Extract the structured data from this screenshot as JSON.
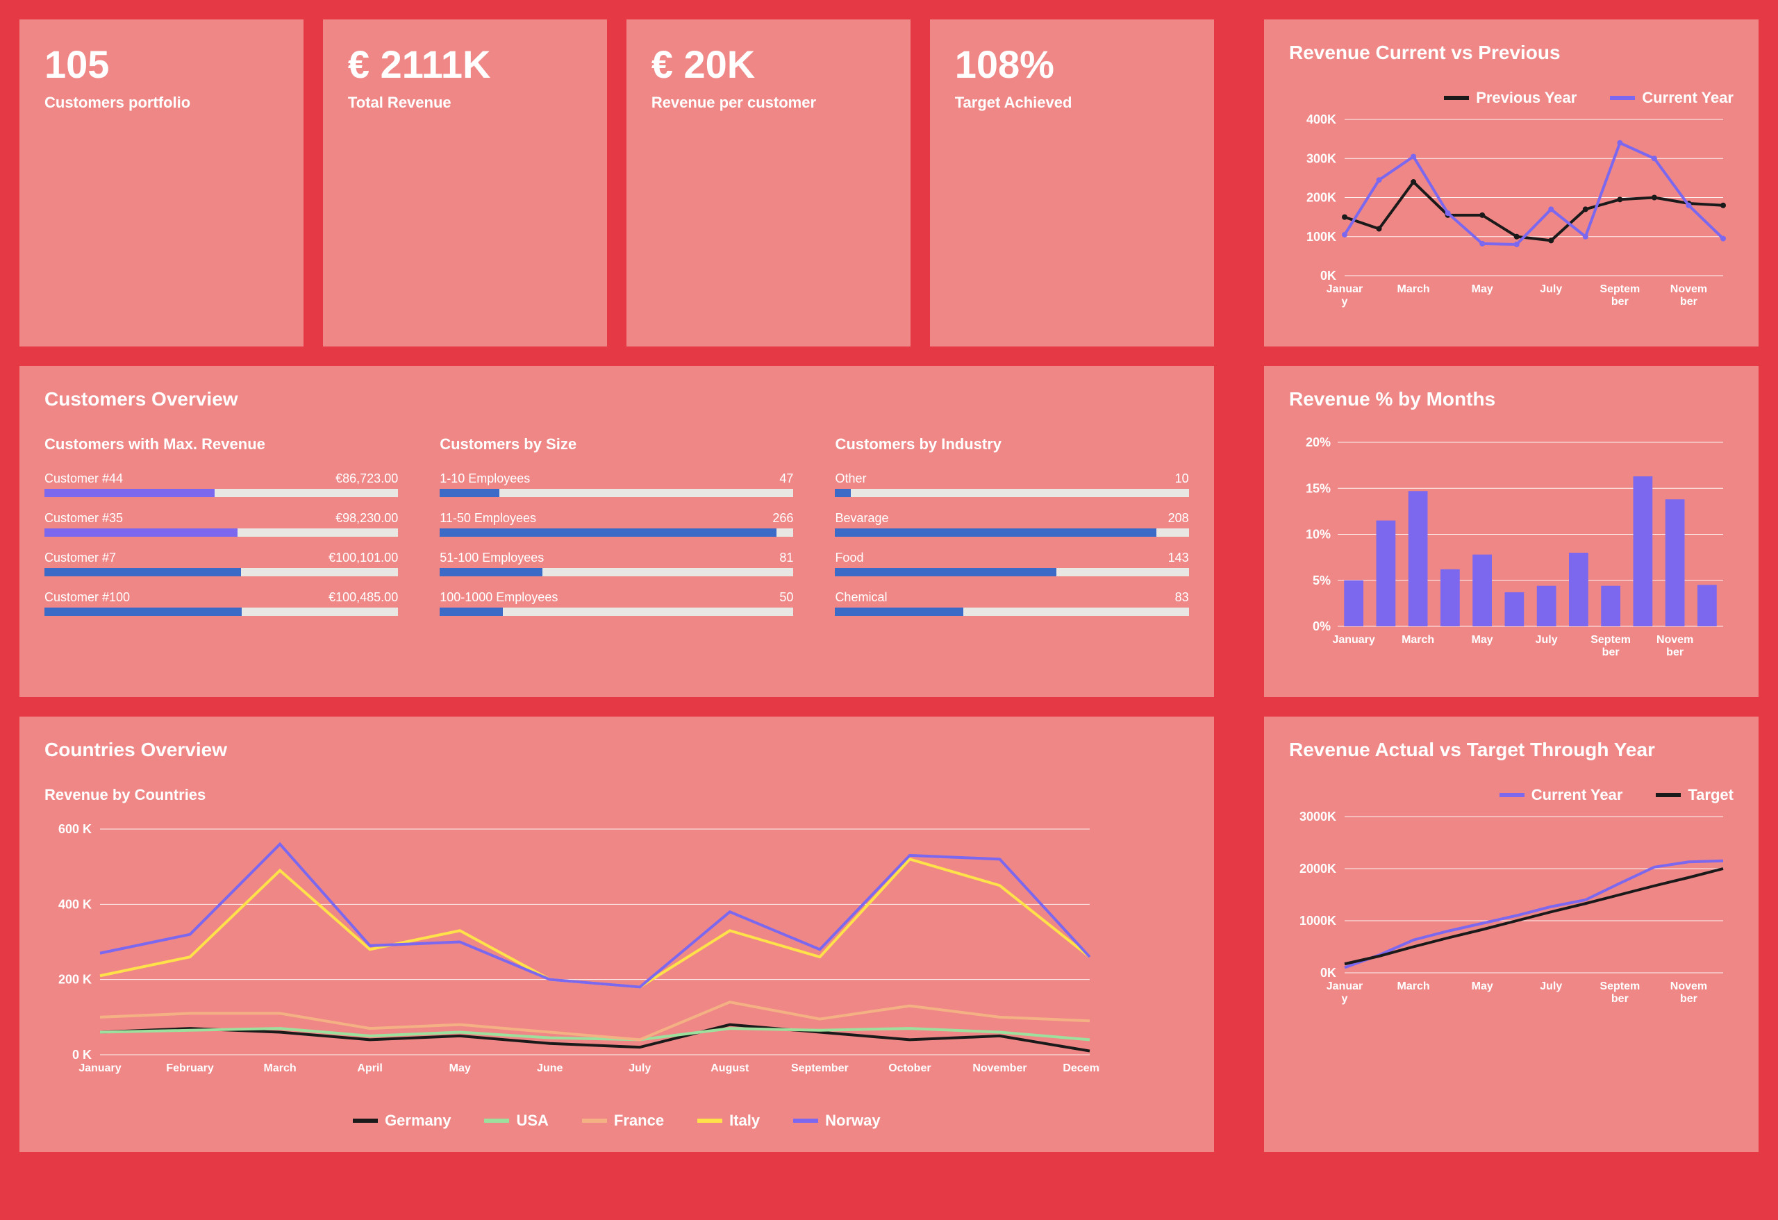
{
  "colors": {
    "bg": "#e63946",
    "panel": "#ef8787",
    "text": "#ffffff",
    "bar_track": "#e9e7e4",
    "bar_blue": "#3b6bc6",
    "bar_purple": "#7b68ee",
    "line_black": "#1a1a1a",
    "line_purple": "#7b68ee",
    "line_green": "#9de09d",
    "line_orange": "#f4b183",
    "line_yellow": "#ffe24a",
    "grid": "#ffffff"
  },
  "kpis": [
    {
      "value": "105",
      "label": "Customers portfolio"
    },
    {
      "value": "€ 2111K",
      "label": "Total Revenue"
    },
    {
      "value": "€ 20K",
      "label": "Revenue per customer"
    },
    {
      "value": "108%",
      "label": "Target Achieved"
    }
  ],
  "customers_overview": {
    "title": "Customers Overview",
    "max_revenue": {
      "title": "Customers with Max. Revenue",
      "max": 100485,
      "items": [
        {
          "label": "Customer #44",
          "value_text": "€86,723.00",
          "value": 86723,
          "color": "#7b68ee"
        },
        {
          "label": "Customer #35",
          "value_text": "€98,230.00",
          "value": 98230,
          "color": "#7b68ee"
        },
        {
          "label": "Customer #7",
          "value_text": "€100,101.00",
          "value": 100101,
          "color": "#3b6bc6"
        },
        {
          "label": "Customer #100",
          "value_text": "€100,485.00",
          "value": 100485,
          "color": "#3b6bc6"
        }
      ]
    },
    "by_size": {
      "title": "Customers by Size",
      "max": 266,
      "items": [
        {
          "label": "1-10 Employees",
          "value_text": "47",
          "value": 47,
          "color": "#3b6bc6"
        },
        {
          "label": "11-50 Employees",
          "value_text": "266",
          "value": 266,
          "color": "#3b6bc6"
        },
        {
          "label": "51-100 Employees",
          "value_text": "81",
          "value": 81,
          "color": "#3b6bc6"
        },
        {
          "label": "100-1000 Employees",
          "value_text": "50",
          "value": 50,
          "color": "#3b6bc6"
        }
      ]
    },
    "by_industry": {
      "title": "Customers by Industry",
      "max": 208,
      "items": [
        {
          "label": "Other",
          "value_text": "10",
          "value": 10,
          "color": "#3b6bc6"
        },
        {
          "label": "Bevarage",
          "value_text": "208",
          "value": 208,
          "color": "#3b6bc6"
        },
        {
          "label": "Food",
          "value_text": "143",
          "value": 143,
          "color": "#3b6bc6"
        },
        {
          "label": "Chemical",
          "value_text": "83",
          "value": 83,
          "color": "#3b6bc6"
        }
      ]
    }
  },
  "countries_overview": {
    "title": "Countries Overview",
    "subtitle": "Revenue by Countries",
    "months": [
      "January",
      "February",
      "March",
      "April",
      "May",
      "June",
      "July",
      "August",
      "September",
      "October",
      "November",
      "December"
    ],
    "y_ticks": [
      0,
      200,
      400,
      600
    ],
    "y_tick_labels": [
      "0 K",
      "200 K",
      "400 K",
      "600 K"
    ],
    "ylim": [
      0,
      600
    ],
    "series": [
      {
        "name": "Germany",
        "color": "#1a1a1a",
        "values": [
          60,
          70,
          60,
          40,
          50,
          30,
          20,
          80,
          60,
          40,
          50,
          10
        ]
      },
      {
        "name": "USA",
        "color": "#9de09d",
        "values": [
          60,
          65,
          70,
          50,
          60,
          45,
          40,
          70,
          65,
          70,
          60,
          40
        ]
      },
      {
        "name": "France",
        "color": "#f4b183",
        "values": [
          100,
          110,
          110,
          70,
          80,
          60,
          40,
          140,
          95,
          130,
          100,
          90
        ]
      },
      {
        "name": "Italy",
        "color": "#ffe24a",
        "values": [
          210,
          260,
          490,
          280,
          330,
          200,
          180,
          330,
          260,
          520,
          450,
          260
        ]
      },
      {
        "name": "Norway",
        "color": "#7b68ee",
        "values": [
          270,
          320,
          560,
          290,
          300,
          200,
          180,
          380,
          280,
          530,
          520,
          260
        ]
      }
    ]
  },
  "revenue_cvp": {
    "title": "Revenue Current vs Previous",
    "months_short": [
      "Januar y",
      "March",
      "May",
      "July",
      "Septem ber",
      "Novem ber"
    ],
    "y_ticks": [
      0,
      100,
      200,
      300,
      400
    ],
    "y_tick_labels": [
      "0K",
      "100K",
      "200K",
      "300K",
      "400K"
    ],
    "ylim": [
      0,
      400
    ],
    "series": [
      {
        "name": "Previous Year",
        "color": "#1a1a1a",
        "values": [
          150,
          120,
          240,
          155,
          155,
          100,
          90,
          170,
          195,
          200,
          185,
          180
        ]
      },
      {
        "name": "Current Year",
        "color": "#7b68ee",
        "values": [
          105,
          245,
          305,
          160,
          82,
          80,
          170,
          100,
          340,
          300,
          180,
          95
        ]
      }
    ]
  },
  "revenue_pct": {
    "title": "Revenue % by Months",
    "months_short": [
      "January",
      "March",
      "May",
      "July",
      "Septem ber",
      "Novem ber"
    ],
    "y_ticks": [
      0,
      5,
      10,
      15,
      20
    ],
    "y_tick_labels": [
      "0%",
      "5%",
      "10%",
      "15%",
      "20%"
    ],
    "ylim": [
      0,
      20
    ],
    "color": "#7b68ee",
    "values": [
      5,
      11.5,
      14.7,
      6.2,
      7.8,
      3.7,
      4.4,
      8,
      4.4,
      16.3,
      13.8,
      4.5
    ]
  },
  "revenue_avt": {
    "title": "Revenue Actual vs Target Through Year",
    "months_short": [
      "Januar y",
      "March",
      "May",
      "July",
      "Septem ber",
      "Novem ber"
    ],
    "y_ticks": [
      0,
      1000,
      2000,
      3000
    ],
    "y_tick_labels": [
      "0K",
      "1000K",
      "2000K",
      "3000K"
    ],
    "ylim": [
      0,
      3000
    ],
    "series": [
      {
        "name": "Current Year",
        "color": "#7b68ee",
        "values": [
          100,
          340,
          630,
          800,
          950,
          1100,
          1270,
          1400,
          1720,
          2030,
          2130,
          2150
        ]
      },
      {
        "name": "Target",
        "color": "#1a1a1a",
        "values": [
          170,
          320,
          500,
          670,
          830,
          1000,
          1170,
          1330,
          1500,
          1670,
          1830,
          2000
        ]
      }
    ]
  }
}
